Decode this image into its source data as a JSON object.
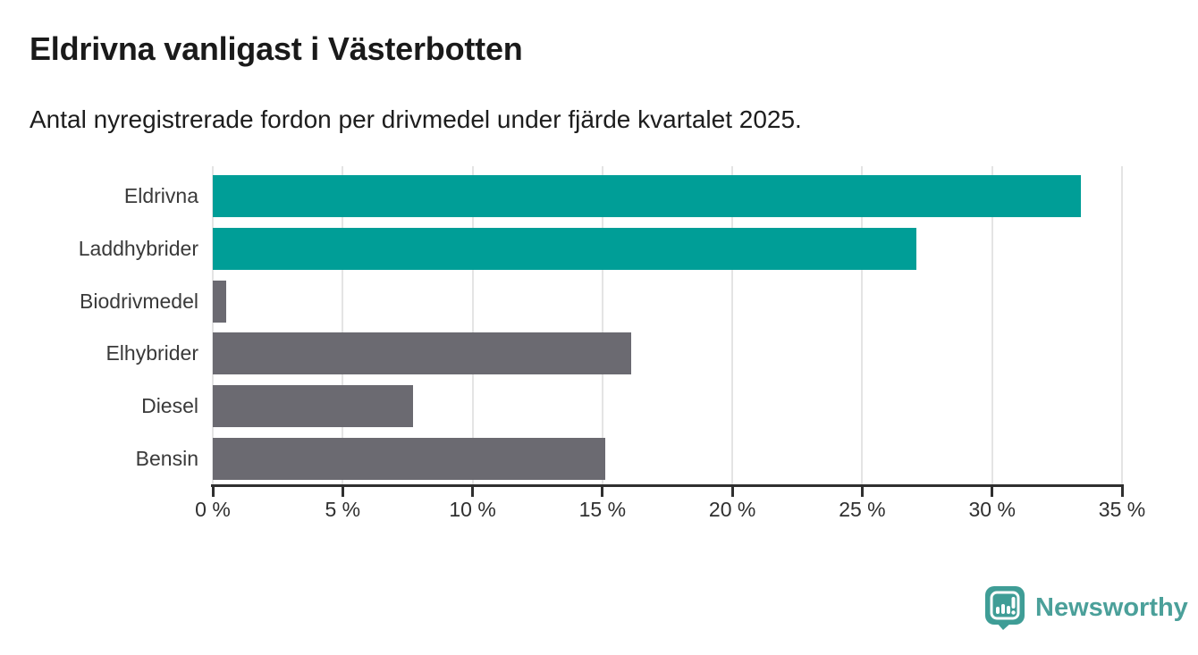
{
  "header": {
    "title": "Eldrivna vanligast i Västerbotten",
    "subtitle": "Antal nyregistrerade fordon per drivmedel under fjärde kvartalet 2025."
  },
  "chart_data": {
    "type": "bar",
    "orientation": "horizontal",
    "title": "Eldrivna vanligast i Västerbotten",
    "subtitle": "Antal nyregistrerade fordon per drivmedel under fjärde kvartalet 2025.",
    "categories": [
      "Eldrivna",
      "Laddhybrider",
      "Biodrivmedel",
      "Elhybrider",
      "Diesel",
      "Bensin"
    ],
    "values": [
      33.4,
      27.1,
      0.5,
      16.1,
      7.7,
      15.1
    ],
    "unit": "%",
    "xlabel": "",
    "ylabel": "",
    "xlim": [
      0,
      35
    ],
    "x_ticks": [
      0,
      5,
      10,
      15,
      20,
      25,
      30,
      35
    ],
    "x_tick_labels": [
      "0 %",
      "5 %",
      "10 %",
      "15 %",
      "20 %",
      "25 %",
      "30 %",
      "35 %"
    ],
    "grid": "vertical-only",
    "legend": "none",
    "bar_colors": [
      "#009e97",
      "#009e97",
      "#6b6a71",
      "#6b6a71",
      "#6b6a71",
      "#6b6a71"
    ],
    "colors": {
      "highlight": "#009e97",
      "default": "#6b6a71",
      "gridline": "#e4e4e4",
      "axis": "#2f2f2f",
      "title_text": "#1a1a1a",
      "label_text": "#3a3a3a"
    }
  },
  "footer": {
    "brand": "Newsworthy",
    "logo_icon": "newsworthy-speech-bubble-bar-chart-icon",
    "brand_color": "#4ba09a",
    "logo_mark_color": "#3f9d96"
  }
}
